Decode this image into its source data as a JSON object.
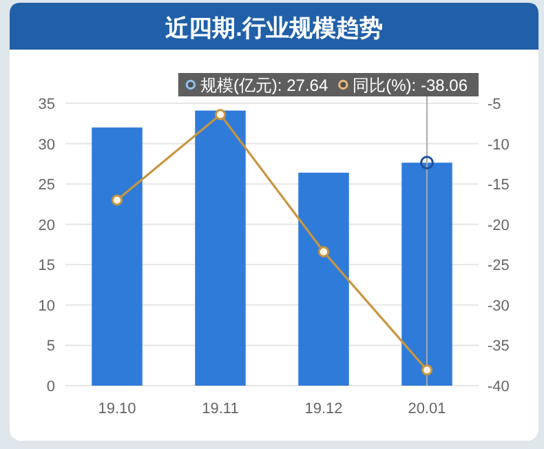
{
  "chart_data": {
    "type": "bar",
    "title": "近四期.行业规模趋势",
    "categories": [
      "19.10",
      "19.11",
      "19.12",
      "20.01"
    ],
    "series": [
      {
        "color": "#2f7bd9",
        "values": [
          32.0,
          34.1,
          26.4,
          27.64
        ]
      },
      {
        "type": "line",
        "axis": "y2",
        "color": "#c8963e",
        "values": [
          -17.0,
          -6.4,
          -23.4,
          -38.06
        ]
      }
    ],
    "annotations": [
      "规模(亿元): 27.64",
      "同比(%): -38.06"
    ],
    "ylim": [
      0,
      35
    ],
    "yticks": [
      0,
      5,
      10,
      15,
      20,
      25,
      30,
      35
    ],
    "y2lim": [
      -40,
      -5
    ],
    "y2ticks": [
      -40,
      -35,
      -30,
      -25,
      -20,
      -15,
      -10,
      -5
    ],
    "ref_lines": [
      {
        "axis": "x",
        "value": "20.01",
        "color": "#aaaaaa"
      }
    ],
    "grid": "y",
    "marker": "circle"
  }
}
